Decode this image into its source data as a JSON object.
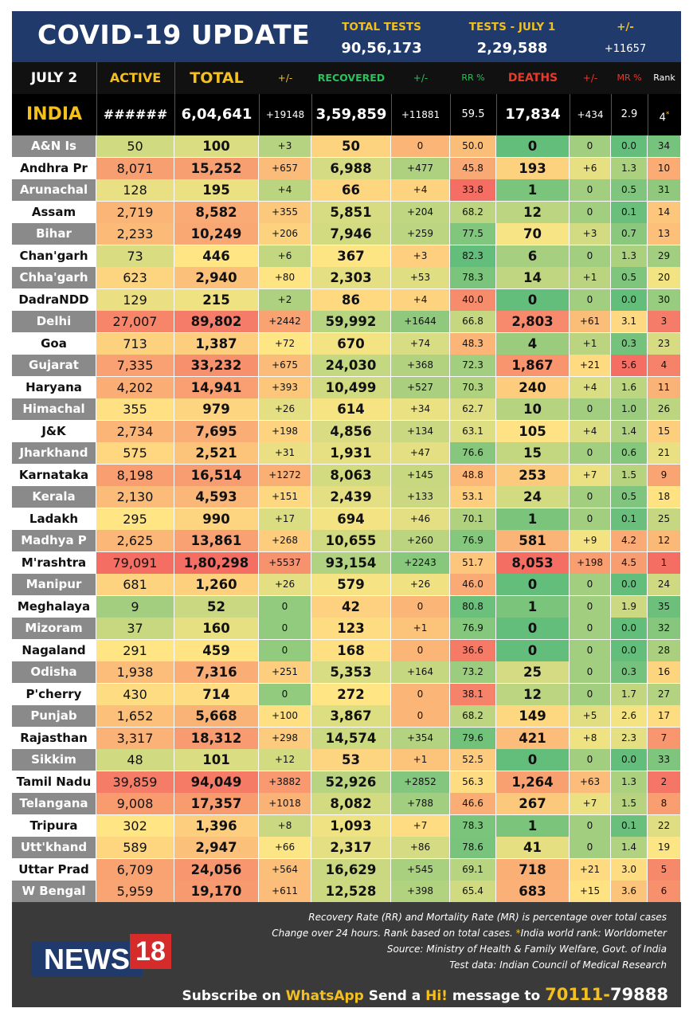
{
  "header": {
    "title": "COVID-19 UPDATE",
    "total_tests_label": "TOTAL TESTS",
    "total_tests_value": "90,56,173",
    "tests_day_label": "TESTS - JULY 1",
    "tests_day_value": "2,29,588",
    "change_label": "+/-",
    "change_value": "+11657"
  },
  "columns": {
    "date": "JULY 2",
    "active": "ACTIVE",
    "total": "TOTAL",
    "total_change": "+/-",
    "recovered": "RECOVERED",
    "recovered_change": "+/-",
    "rr": "RR %",
    "deaths": "DEATHS",
    "deaths_change": "+/-",
    "mr": "MR %",
    "rank": "Rank"
  },
  "india": {
    "name": "INDIA",
    "active": "######",
    "total": "6,04,641",
    "total_change": "+19148",
    "recovered": "3,59,859",
    "recovered_change": "+11881",
    "rr": "59.5",
    "deaths": "17,834",
    "deaths_change": "+434",
    "mr": "2.9",
    "rank": "4",
    "rank_mark": "*"
  },
  "states": [
    {
      "name": "A&N Is",
      "active": "50",
      "total": "100",
      "total_change": "+3",
      "recovered": "50",
      "recovered_change": "0",
      "rr": "50.0",
      "deaths": "0",
      "deaths_change": "0",
      "mr": "0.0",
      "rank": "34"
    },
    {
      "name": "Andhra Pr",
      "active": "8,071",
      "total": "15,252",
      "total_change": "+657",
      "recovered": "6,988",
      "recovered_change": "+477",
      "rr": "45.8",
      "deaths": "193",
      "deaths_change": "+6",
      "mr": "1.3",
      "rank": "10"
    },
    {
      "name": "Arunachal",
      "active": "128",
      "total": "195",
      "total_change": "+4",
      "recovered": "66",
      "recovered_change": "+4",
      "rr": "33.8",
      "deaths": "1",
      "deaths_change": "0",
      "mr": "0.5",
      "rank": "31"
    },
    {
      "name": "Assam",
      "active": "2,719",
      "total": "8,582",
      "total_change": "+355",
      "recovered": "5,851",
      "recovered_change": "+204",
      "rr": "68.2",
      "deaths": "12",
      "deaths_change": "0",
      "mr": "0.1",
      "rank": "14"
    },
    {
      "name": "Bihar",
      "active": "2,233",
      "total": "10,249",
      "total_change": "+206",
      "recovered": "7,946",
      "recovered_change": "+259",
      "rr": "77.5",
      "deaths": "70",
      "deaths_change": "+3",
      "mr": "0.7",
      "rank": "13"
    },
    {
      "name": "Chan'garh",
      "active": "73",
      "total": "446",
      "total_change": "+6",
      "recovered": "367",
      "recovered_change": "+3",
      "rr": "82.3",
      "deaths": "6",
      "deaths_change": "0",
      "mr": "1.3",
      "rank": "29"
    },
    {
      "name": "Chha'garh",
      "active": "623",
      "total": "2,940",
      "total_change": "+80",
      "recovered": "2,303",
      "recovered_change": "+53",
      "rr": "78.3",
      "deaths": "14",
      "deaths_change": "+1",
      "mr": "0.5",
      "rank": "20"
    },
    {
      "name": "DadraNDD",
      "active": "129",
      "total": "215",
      "total_change": "+2",
      "recovered": "86",
      "recovered_change": "+4",
      "rr": "40.0",
      "deaths": "0",
      "deaths_change": "0",
      "mr": "0.0",
      "rank": "30"
    },
    {
      "name": "Delhi",
      "active": "27,007",
      "total": "89,802",
      "total_change": "+2442",
      "recovered": "59,992",
      "recovered_change": "+1644",
      "rr": "66.8",
      "deaths": "2,803",
      "deaths_change": "+61",
      "mr": "3.1",
      "rank": "3"
    },
    {
      "name": "Goa",
      "active": "713",
      "total": "1,387",
      "total_change": "+72",
      "recovered": "670",
      "recovered_change": "+74",
      "rr": "48.3",
      "deaths": "4",
      "deaths_change": "+1",
      "mr": "0.3",
      "rank": "23"
    },
    {
      "name": "Gujarat",
      "active": "7,335",
      "total": "33,232",
      "total_change": "+675",
      "recovered": "24,030",
      "recovered_change": "+368",
      "rr": "72.3",
      "deaths": "1,867",
      "deaths_change": "+21",
      "mr": "5.6",
      "rank": "4"
    },
    {
      "name": "Haryana",
      "active": "4,202",
      "total": "14,941",
      "total_change": "+393",
      "recovered": "10,499",
      "recovered_change": "+527",
      "rr": "70.3",
      "deaths": "240",
      "deaths_change": "+4",
      "mr": "1.6",
      "rank": "11"
    },
    {
      "name": "Himachal",
      "active": "355",
      "total": "979",
      "total_change": "+26",
      "recovered": "614",
      "recovered_change": "+34",
      "rr": "62.7",
      "deaths": "10",
      "deaths_change": "0",
      "mr": "1.0",
      "rank": "26"
    },
    {
      "name": "J&K",
      "active": "2,734",
      "total": "7,695",
      "total_change": "+198",
      "recovered": "4,856",
      "recovered_change": "+134",
      "rr": "63.1",
      "deaths": "105",
      "deaths_change": "+4",
      "mr": "1.4",
      "rank": "15"
    },
    {
      "name": "Jharkhand",
      "active": "575",
      "total": "2,521",
      "total_change": "+31",
      "recovered": "1,931",
      "recovered_change": "+47",
      "rr": "76.6",
      "deaths": "15",
      "deaths_change": "0",
      "mr": "0.6",
      "rank": "21"
    },
    {
      "name": "Karnataka",
      "active": "8,198",
      "total": "16,514",
      "total_change": "+1272",
      "recovered": "8,063",
      "recovered_change": "+145",
      "rr": "48.8",
      "deaths": "253",
      "deaths_change": "+7",
      "mr": "1.5",
      "rank": "9"
    },
    {
      "name": "Kerala",
      "active": "2,130",
      "total": "4,593",
      "total_change": "+151",
      "recovered": "2,439",
      "recovered_change": "+133",
      "rr": "53.1",
      "deaths": "24",
      "deaths_change": "0",
      "mr": "0.5",
      "rank": "18"
    },
    {
      "name": "Ladakh",
      "active": "295",
      "total": "990",
      "total_change": "+17",
      "recovered": "694",
      "recovered_change": "+46",
      "rr": "70.1",
      "deaths": "1",
      "deaths_change": "0",
      "mr": "0.1",
      "rank": "25"
    },
    {
      "name": "Madhya P",
      "active": "2,625",
      "total": "13,861",
      "total_change": "+268",
      "recovered": "10,655",
      "recovered_change": "+260",
      "rr": "76.9",
      "deaths": "581",
      "deaths_change": "+9",
      "mr": "4.2",
      "rank": "12"
    },
    {
      "name": "M'rashtra",
      "active": "79,091",
      "total": "1,80,298",
      "total_change": "+5537",
      "recovered": "93,154",
      "recovered_change": "+2243",
      "rr": "51.7",
      "deaths": "8,053",
      "deaths_change": "+198",
      "mr": "4.5",
      "rank": "1"
    },
    {
      "name": "Manipur",
      "active": "681",
      "total": "1,260",
      "total_change": "+26",
      "recovered": "579",
      "recovered_change": "+26",
      "rr": "46.0",
      "deaths": "0",
      "deaths_change": "0",
      "mr": "0.0",
      "rank": "24"
    },
    {
      "name": "Meghalaya",
      "active": "9",
      "total": "52",
      "total_change": "0",
      "recovered": "42",
      "recovered_change": "0",
      "rr": "80.8",
      "deaths": "1",
      "deaths_change": "0",
      "mr": "1.9",
      "rank": "35"
    },
    {
      "name": "Mizoram",
      "active": "37",
      "total": "160",
      "total_change": "0",
      "recovered": "123",
      "recovered_change": "+1",
      "rr": "76.9",
      "deaths": "0",
      "deaths_change": "0",
      "mr": "0.0",
      "rank": "32"
    },
    {
      "name": "Nagaland",
      "active": "291",
      "total": "459",
      "total_change": "0",
      "recovered": "168",
      "recovered_change": "0",
      "rr": "36.6",
      "deaths": "0",
      "deaths_change": "0",
      "mr": "0.0",
      "rank": "28"
    },
    {
      "name": "Odisha",
      "active": "1,938",
      "total": "7,316",
      "total_change": "+251",
      "recovered": "5,353",
      "recovered_change": "+164",
      "rr": "73.2",
      "deaths": "25",
      "deaths_change": "0",
      "mr": "0.3",
      "rank": "16"
    },
    {
      "name": "P'cherry",
      "active": "430",
      "total": "714",
      "total_change": "0",
      "recovered": "272",
      "recovered_change": "0",
      "rr": "38.1",
      "deaths": "12",
      "deaths_change": "0",
      "mr": "1.7",
      "rank": "27"
    },
    {
      "name": "Punjab",
      "active": "1,652",
      "total": "5,668",
      "total_change": "+100",
      "recovered": "3,867",
      "recovered_change": "0",
      "rr": "68.2",
      "deaths": "149",
      "deaths_change": "+5",
      "mr": "2.6",
      "rank": "17"
    },
    {
      "name": "Rajasthan",
      "active": "3,317",
      "total": "18,312",
      "total_change": "+298",
      "recovered": "14,574",
      "recovered_change": "+354",
      "rr": "79.6",
      "deaths": "421",
      "deaths_change": "+8",
      "mr": "2.3",
      "rank": "7"
    },
    {
      "name": "Sikkim",
      "active": "48",
      "total": "101",
      "total_change": "+12",
      "recovered": "53",
      "recovered_change": "+1",
      "rr": "52.5",
      "deaths": "0",
      "deaths_change": "0",
      "mr": "0.0",
      "rank": "33"
    },
    {
      "name": "Tamil Nadu",
      "active": "39,859",
      "total": "94,049",
      "total_change": "+3882",
      "recovered": "52,926",
      "recovered_change": "+2852",
      "rr": "56.3",
      "deaths": "1,264",
      "deaths_change": "+63",
      "mr": "1.3",
      "rank": "2"
    },
    {
      "name": "Telangana",
      "active": "9,008",
      "total": "17,357",
      "total_change": "+1018",
      "recovered": "8,082",
      "recovered_change": "+788",
      "rr": "46.6",
      "deaths": "267",
      "deaths_change": "+7",
      "mr": "1.5",
      "rank": "8"
    },
    {
      "name": "Tripura",
      "active": "302",
      "total": "1,396",
      "total_change": "+8",
      "recovered": "1,093",
      "recovered_change": "+7",
      "rr": "78.3",
      "deaths": "1",
      "deaths_change": "0",
      "mr": "0.1",
      "rank": "22"
    },
    {
      "name": "Utt'khand",
      "active": "589",
      "total": "2,947",
      "total_change": "+66",
      "recovered": "2,317",
      "recovered_change": "+86",
      "rr": "78.6",
      "deaths": "41",
      "deaths_change": "0",
      "mr": "1.4",
      "rank": "19"
    },
    {
      "name": "Uttar Prad",
      "active": "6,709",
      "total": "24,056",
      "total_change": "+564",
      "recovered": "16,629",
      "recovered_change": "+545",
      "rr": "69.1",
      "deaths": "718",
      "deaths_change": "+21",
      "mr": "3.0",
      "rank": "5"
    },
    {
      "name": "W Bengal",
      "active": "5,959",
      "total": "19,170",
      "total_change": "+611",
      "recovered": "12,528",
      "recovered_change": "+398",
      "rr": "65.4",
      "deaths": "683",
      "deaths_change": "+15",
      "mr": "3.6",
      "rank": "6"
    }
  ],
  "footer": {
    "note1": "Recovery Rate (RR) and Mortality Rate (MR) is percentage over total cases",
    "note2a": "Change over 24 hours. Rank based on total cases. ",
    "note2b": "*",
    "note2c": "India world rank: Worldometer",
    "note3": "Source: Ministry of Health & Family Welfare, Govt. of India",
    "note4": "Test data: Indian Council of Medical Research",
    "logo_main": "NEWS",
    "logo_num": "18",
    "sub_a": "Subscribe on ",
    "sub_b": "WhatsApp",
    "sub_c": " Send a ",
    "sub_d": "Hi!",
    "sub_e": " message to ",
    "sub_f": "70111-",
    "sub_g": "79888"
  },
  "colors": {
    "header_bg": "#1f3a6b",
    "header_label": "#f3c020",
    "recovered_label": "#27c35a",
    "deaths_label": "#e53b2a",
    "india_name": "#f3c020",
    "footer_bg": "#3a3a3a",
    "logo_red": "#d52b2b"
  }
}
